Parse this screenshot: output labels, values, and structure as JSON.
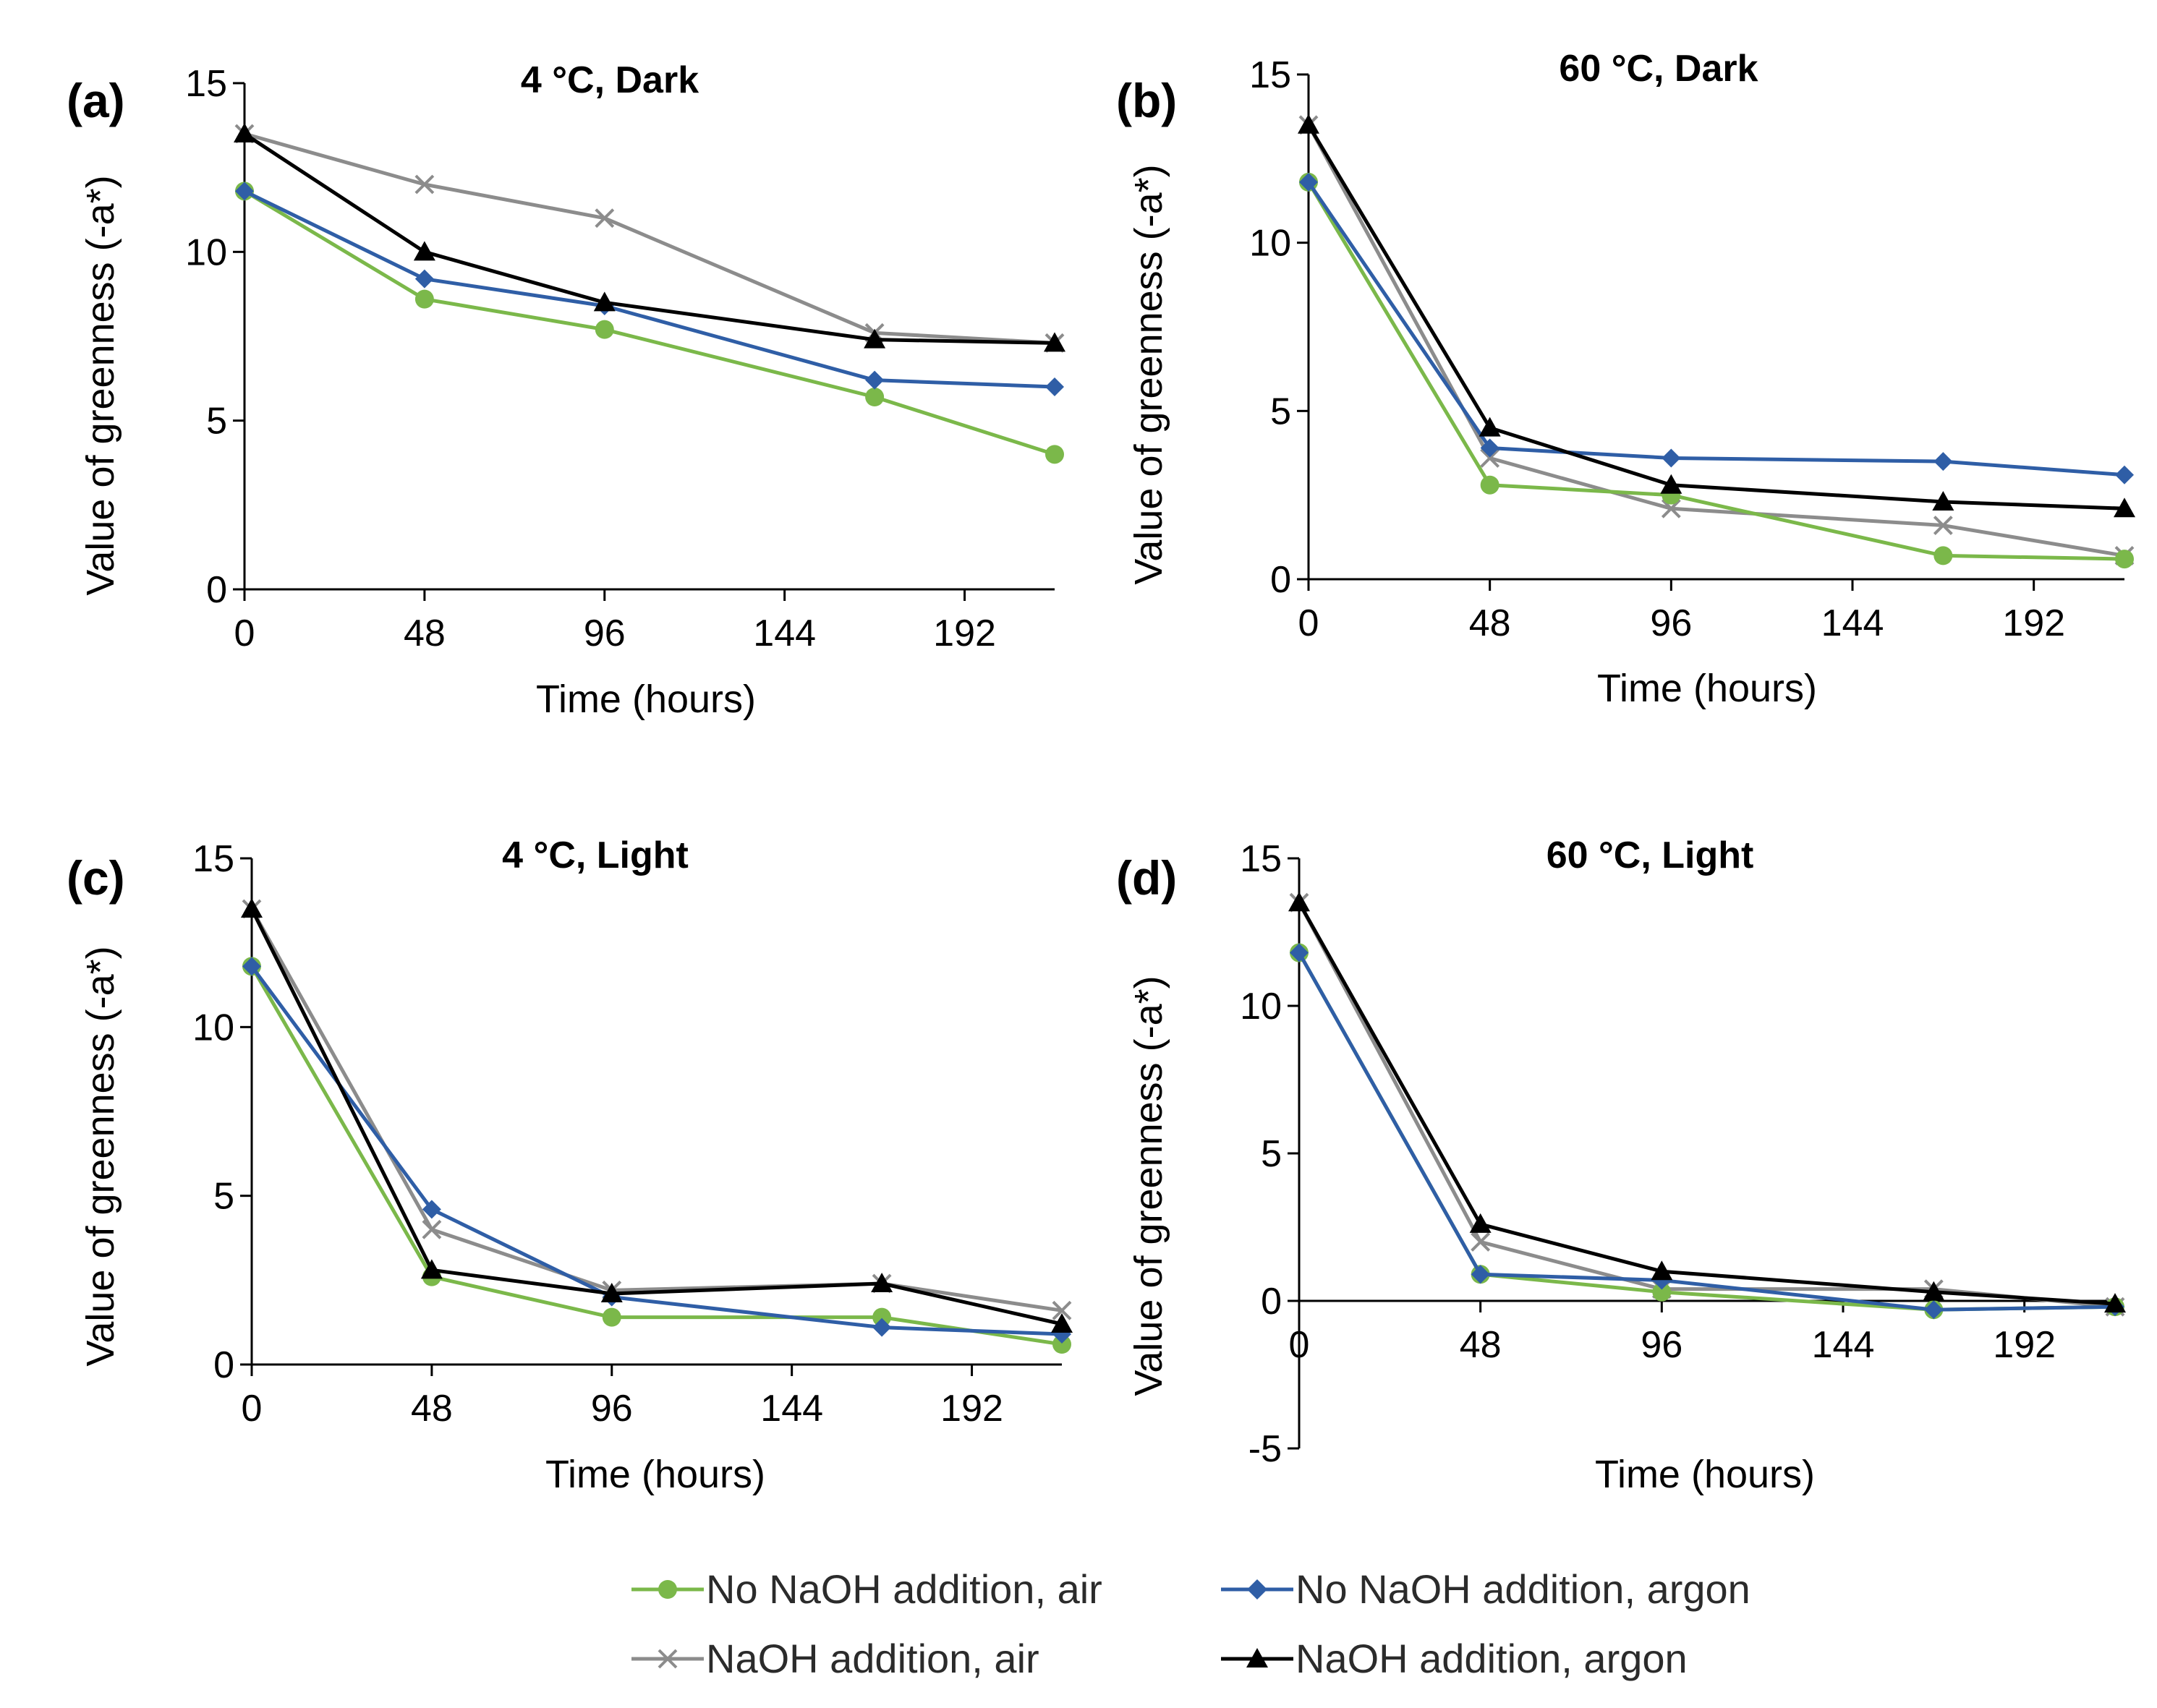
{
  "colors": {
    "green": "#7bb84a",
    "blue": "#2f5ea6",
    "gray": "#8c8c8c",
    "black": "#000000"
  },
  "legend": [
    {
      "label": "No NaOH addition, air",
      "color": "#7bb84a",
      "marker": "circle"
    },
    {
      "label": "No NaOH addition, argon",
      "color": "#2f5ea6",
      "marker": "diamond"
    },
    {
      "label": "NaOH addition, air",
      "color": "#8c8c8c",
      "marker": "x"
    },
    {
      "label": "NaOH addition, argon",
      "color": "#000000",
      "marker": "triangle"
    }
  ],
  "chart_data": [
    {
      "type": "line",
      "panel": "(a)",
      "title": "4 °C, Dark",
      "xlabel": "Time (hours)",
      "ylabel": "Value of greenness (-a*)",
      "xlim": [
        0,
        216
      ],
      "ylim": [
        0,
        15
      ],
      "xticks": [
        0,
        48,
        96,
        144,
        192
      ],
      "yticks": [
        0,
        5,
        10,
        15
      ],
      "x": [
        0,
        48,
        96,
        168,
        216
      ],
      "series": [
        {
          "name": "No NaOH addition, air",
          "values": [
            11.8,
            8.6,
            7.7,
            5.7,
            4.0
          ]
        },
        {
          "name": "No NaOH addition, argon",
          "values": [
            11.8,
            9.2,
            8.4,
            6.2,
            6.0
          ]
        },
        {
          "name": "NaOH addition, air",
          "values": [
            13.5,
            12.0,
            11.0,
            7.6,
            7.3
          ]
        },
        {
          "name": "NaOH addition, argon",
          "values": [
            13.5,
            10.0,
            8.5,
            7.4,
            7.3
          ]
        }
      ]
    },
    {
      "type": "line",
      "panel": "(b)",
      "title": "60 °C, Dark",
      "xlabel": "Time (hours)",
      "ylabel": "Value of greenness (-a*)",
      "xlim": [
        0,
        216
      ],
      "ylim": [
        0,
        15
      ],
      "xticks": [
        0,
        48,
        96,
        144,
        192
      ],
      "yticks": [
        0,
        5,
        10,
        15
      ],
      "x": [
        0,
        48,
        96,
        168,
        216
      ],
      "series": [
        {
          "name": "No NaOH addition, air",
          "values": [
            11.8,
            2.8,
            2.5,
            0.7,
            0.6
          ]
        },
        {
          "name": "No NaOH addition, argon",
          "values": [
            11.8,
            3.9,
            3.6,
            3.5,
            3.1
          ]
        },
        {
          "name": "NaOH addition, air",
          "values": [
            13.5,
            3.6,
            2.1,
            1.6,
            0.7
          ]
        },
        {
          "name": "NaOH addition, argon",
          "values": [
            13.5,
            4.5,
            2.8,
            2.3,
            2.1
          ]
        }
      ]
    },
    {
      "type": "line",
      "panel": "(c)",
      "title": "4 °C, Light",
      "xlabel": "Time (hours)",
      "ylabel": "Value of greenness (-a*)",
      "xlim": [
        0,
        216
      ],
      "ylim": [
        0,
        15
      ],
      "xticks": [
        0,
        48,
        96,
        144,
        192
      ],
      "yticks": [
        0,
        5,
        10,
        15
      ],
      "x": [
        0,
        48,
        96,
        168,
        216
      ],
      "series": [
        {
          "name": "No NaOH addition, air",
          "values": [
            11.8,
            2.6,
            1.4,
            1.4,
            0.6
          ]
        },
        {
          "name": "No NaOH addition, argon",
          "values": [
            11.8,
            4.6,
            2.0,
            1.1,
            0.9
          ]
        },
        {
          "name": "NaOH addition, air",
          "values": [
            13.5,
            4.0,
            2.2,
            2.4,
            1.6
          ]
        },
        {
          "name": "NaOH addition, argon",
          "values": [
            13.5,
            2.8,
            2.1,
            2.4,
            1.2
          ]
        }
      ]
    },
    {
      "type": "line",
      "panel": "(d)",
      "title": "60 °C, Light",
      "xlabel": "Time (hours)",
      "ylabel": "Value of greenness (-a*)",
      "xlim": [
        0,
        216
      ],
      "ylim": [
        -5,
        15
      ],
      "xticks": [
        0,
        48,
        96,
        144,
        192
      ],
      "yticks": [
        -5,
        0,
        5,
        10,
        15
      ],
      "x": [
        0,
        48,
        96,
        168,
        216
      ],
      "series": [
        {
          "name": "No NaOH addition, air",
          "values": [
            11.8,
            0.9,
            0.3,
            -0.3,
            -0.2
          ]
        },
        {
          "name": "No NaOH addition, argon",
          "values": [
            11.8,
            0.9,
            0.7,
            -0.3,
            -0.2
          ]
        },
        {
          "name": "NaOH addition, air",
          "values": [
            13.5,
            2.0,
            0.4,
            0.4,
            -0.2
          ]
        },
        {
          "name": "NaOH addition, argon",
          "values": [
            13.5,
            2.6,
            1.0,
            0.3,
            -0.1
          ]
        }
      ]
    }
  ]
}
